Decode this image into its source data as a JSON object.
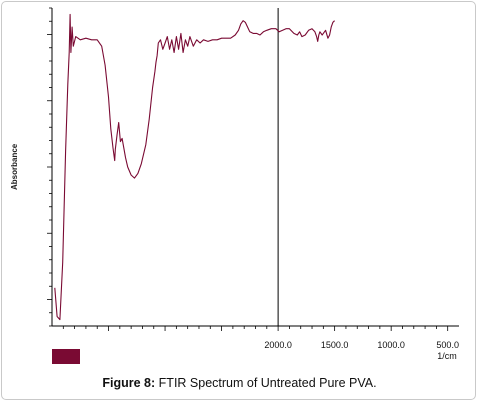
{
  "caption": {
    "label": "Figure 8:",
    "text": "FTIR Spectrum of Untreated Pure PVA."
  },
  "colors": {
    "spectrum": "#7a0a33",
    "legend_swatch": "#7a0a33",
    "axis": "#000000"
  },
  "chart_data": {
    "type": "line",
    "title": "",
    "xlabel": "",
    "ylabel": "Absorbance",
    "x_unit_label": "1/cm",
    "x_reversed": true,
    "xlim": [
      4000,
      400
    ],
    "ylim": [
      0,
      1
    ],
    "x_ticks": [
      {
        "value": 2000,
        "label": "2000.0"
      },
      {
        "value": 1500,
        "label": "1500.0"
      },
      {
        "value": 1000,
        "label": "1000.0"
      },
      {
        "value": 500,
        "label": "500.0"
      }
    ],
    "marker_line_x": 2000,
    "legend": {
      "placement": "bottom-left",
      "entries": [
        ""
      ]
    },
    "series": [
      {
        "name": "",
        "points": [
          [
            3975,
            0.12
          ],
          [
            3955,
            0.03
          ],
          [
            3930,
            0.02
          ],
          [
            3905,
            0.2
          ],
          [
            3880,
            0.55
          ],
          [
            3860,
            0.76
          ],
          [
            3848,
            0.86
          ],
          [
            3840,
            0.98
          ],
          [
            3833,
            0.86
          ],
          [
            3822,
            0.94
          ],
          [
            3812,
            0.88
          ],
          [
            3790,
            0.91
          ],
          [
            3750,
            0.9
          ],
          [
            3700,
            0.905
          ],
          [
            3650,
            0.9
          ],
          [
            3600,
            0.9
          ],
          [
            3560,
            0.88
          ],
          [
            3530,
            0.82
          ],
          [
            3500,
            0.72
          ],
          [
            3480,
            0.62
          ],
          [
            3460,
            0.56
          ],
          [
            3445,
            0.52
          ],
          [
            3440,
            0.555
          ],
          [
            3425,
            0.6
          ],
          [
            3410,
            0.64
          ],
          [
            3395,
            0.58
          ],
          [
            3380,
            0.59
          ],
          [
            3365,
            0.56
          ],
          [
            3350,
            0.53
          ],
          [
            3330,
            0.5
          ],
          [
            3300,
            0.475
          ],
          [
            3270,
            0.465
          ],
          [
            3240,
            0.48
          ],
          [
            3210,
            0.51
          ],
          [
            3170,
            0.57
          ],
          [
            3140,
            0.65
          ],
          [
            3110,
            0.75
          ],
          [
            3090,
            0.8
          ],
          [
            3080,
            0.83
          ],
          [
            3070,
            0.85
          ],
          [
            3060,
            0.89
          ],
          [
            3040,
            0.9
          ],
          [
            3020,
            0.87
          ],
          [
            3000,
            0.89
          ],
          [
            2980,
            0.91
          ],
          [
            2960,
            0.87
          ],
          [
            2940,
            0.9
          ],
          [
            2920,
            0.86
          ],
          [
            2900,
            0.91
          ],
          [
            2880,
            0.87
          ],
          [
            2860,
            0.92
          ],
          [
            2840,
            0.86
          ],
          [
            2820,
            0.9
          ],
          [
            2800,
            0.88
          ],
          [
            2780,
            0.91
          ],
          [
            2750,
            0.88
          ],
          [
            2720,
            0.9
          ],
          [
            2690,
            0.89
          ],
          [
            2660,
            0.9
          ],
          [
            2620,
            0.895
          ],
          [
            2580,
            0.9
          ],
          [
            2540,
            0.9
          ],
          [
            2500,
            0.905
          ],
          [
            2460,
            0.905
          ],
          [
            2420,
            0.905
          ],
          [
            2380,
            0.915
          ],
          [
            2350,
            0.93
          ],
          [
            2330,
            0.95
          ],
          [
            2310,
            0.96
          ],
          [
            2290,
            0.955
          ],
          [
            2270,
            0.94
          ],
          [
            2250,
            0.925
          ],
          [
            2220,
            0.92
          ],
          [
            2190,
            0.92
          ],
          [
            2160,
            0.915
          ],
          [
            2130,
            0.925
          ],
          [
            2100,
            0.93
          ],
          [
            2060,
            0.935
          ],
          [
            2020,
            0.935
          ],
          [
            1990,
            0.925
          ],
          [
            1960,
            0.93
          ],
          [
            1930,
            0.935
          ],
          [
            1900,
            0.935
          ],
          [
            1860,
            0.92
          ],
          [
            1830,
            0.915
          ],
          [
            1810,
            0.925
          ],
          [
            1790,
            0.91
          ],
          [
            1760,
            0.915
          ],
          [
            1730,
            0.93
          ],
          [
            1700,
            0.935
          ],
          [
            1675,
            0.925
          ],
          [
            1660,
            0.91
          ],
          [
            1650,
            0.895
          ],
          [
            1640,
            0.915
          ],
          [
            1630,
            0.925
          ],
          [
            1610,
            0.915
          ],
          [
            1600,
            0.92
          ],
          [
            1580,
            0.93
          ],
          [
            1560,
            0.905
          ],
          [
            1545,
            0.915
          ],
          [
            1530,
            0.94
          ],
          [
            1515,
            0.955
          ],
          [
            1500,
            0.96
          ]
        ]
      }
    ]
  }
}
